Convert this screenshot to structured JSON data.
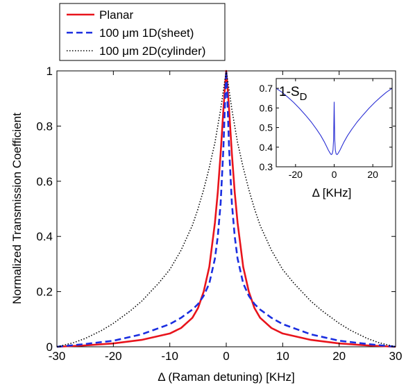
{
  "chart_data": [
    {
      "type": "line",
      "xlabel": "Δ (Raman detuning) [KHz]",
      "ylabel": "Normalized Transmission Coefficient",
      "xlim": [
        -30,
        30
      ],
      "ylim": [
        0,
        1
      ],
      "xticks": [
        "-30",
        "-20",
        "-10",
        "0",
        "10",
        "20",
        "30"
      ],
      "yticks": [
        "0",
        "0.2",
        "0.4",
        "0.6",
        "0.8",
        "1"
      ],
      "grid": false,
      "legend_position": "top-left-outside",
      "series": [
        {
          "name": "Planar",
          "color": "#e8141c",
          "style": "solid",
          "x": [
            -30,
            -25,
            -20,
            -15,
            -10,
            -8,
            -6,
            -5,
            -4,
            -3,
            -2,
            -1.5,
            -1,
            -0.5,
            -0.2,
            0,
            0.2,
            0.5,
            1,
            1.5,
            2,
            3,
            4,
            5,
            6,
            8,
            10,
            15,
            20,
            25,
            30
          ],
          "y": [
            0.0,
            0.005,
            0.012,
            0.025,
            0.048,
            0.068,
            0.105,
            0.14,
            0.2,
            0.29,
            0.45,
            0.56,
            0.7,
            0.86,
            0.95,
            1.0,
            0.95,
            0.86,
            0.7,
            0.56,
            0.45,
            0.29,
            0.2,
            0.14,
            0.105,
            0.068,
            0.048,
            0.025,
            0.012,
            0.005,
            0.0
          ]
        },
        {
          "name": "100 μm 1D(sheet)",
          "color": "#1a2ee0",
          "style": "dashed",
          "x": [
            -30,
            -25,
            -20,
            -15,
            -10,
            -8,
            -6,
            -5,
            -4,
            -3,
            -2,
            -1.5,
            -1,
            -0.5,
            -0.2,
            0,
            0.2,
            0.5,
            1,
            1.5,
            2,
            3,
            4,
            5,
            6,
            8,
            10,
            15,
            20,
            25,
            30
          ],
          "y": [
            0.0,
            0.01,
            0.022,
            0.045,
            0.082,
            0.105,
            0.135,
            0.155,
            0.185,
            0.23,
            0.32,
            0.4,
            0.52,
            0.72,
            0.9,
            1.0,
            0.9,
            0.72,
            0.52,
            0.4,
            0.32,
            0.23,
            0.185,
            0.155,
            0.135,
            0.105,
            0.082,
            0.045,
            0.022,
            0.01,
            0.0
          ]
        },
        {
          "name": "100 μm 2D(cylinder)",
          "color": "#000000",
          "style": "dotted",
          "x": [
            -30,
            -27,
            -25,
            -22,
            -20,
            -17,
            -15,
            -12,
            -10,
            -8,
            -6,
            -5,
            -4,
            -3,
            -2,
            -1,
            -0.5,
            0,
            0.5,
            1,
            2,
            3,
            4,
            5,
            6,
            8,
            10,
            12,
            15,
            17,
            20,
            22,
            25,
            27,
            30
          ],
          "y": [
            0.0,
            0.015,
            0.03,
            0.06,
            0.085,
            0.13,
            0.165,
            0.23,
            0.28,
            0.35,
            0.44,
            0.5,
            0.57,
            0.65,
            0.74,
            0.86,
            0.93,
            1.0,
            0.93,
            0.86,
            0.74,
            0.65,
            0.57,
            0.5,
            0.44,
            0.35,
            0.28,
            0.23,
            0.165,
            0.13,
            0.085,
            0.06,
            0.03,
            0.015,
            0.0
          ]
        }
      ]
    },
    {
      "type": "line",
      "title": "1-S",
      "title_subscript": "D",
      "xlabel": "Δ [KHz]",
      "ylabel": "",
      "xlim": [
        -30,
        30
      ],
      "ylim": [
        0.3,
        0.75
      ],
      "xticks": [
        "-20",
        "0",
        "20"
      ],
      "yticks": [
        "0.3",
        "0.4",
        "0.5",
        "0.6",
        "0.7"
      ],
      "grid": false,
      "series": [
        {
          "color": "#2a2fd4",
          "x": [
            -30,
            -27,
            -24,
            -21,
            -18,
            -15,
            -12,
            -9,
            -7,
            -5,
            -4,
            -3,
            -2,
            -1.5,
            -1,
            -0.6,
            -0.3,
            0,
            0.3,
            0.6,
            1,
            1.5,
            2,
            3,
            4,
            5,
            7,
            9,
            12,
            15,
            18,
            21,
            24,
            27,
            30
          ],
          "y": [
            0.7,
            0.68,
            0.655,
            0.628,
            0.598,
            0.565,
            0.53,
            0.49,
            0.46,
            0.425,
            0.405,
            0.385,
            0.368,
            0.362,
            0.366,
            0.385,
            0.44,
            0.63,
            0.44,
            0.385,
            0.366,
            0.362,
            0.368,
            0.385,
            0.405,
            0.425,
            0.46,
            0.49,
            0.53,
            0.565,
            0.598,
            0.628,
            0.655,
            0.68,
            0.7
          ]
        }
      ]
    }
  ]
}
